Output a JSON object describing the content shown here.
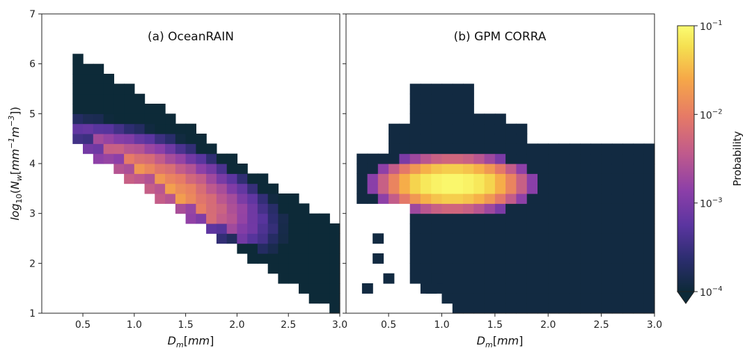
{
  "chart_data": [
    {
      "type": "heatmap",
      "title": "(a) OceanRAIN",
      "xlabel": "D_m[mm]",
      "ylabel": "log10(N_w[mm^-1 m^-3])",
      "xlim": [
        0.1,
        3.0
      ],
      "ylim": [
        1,
        7
      ],
      "xticks": [
        "0.5",
        "1.0",
        "1.5",
        "2.0",
        "2.5",
        "3.0"
      ],
      "yticks": [
        "1",
        "2",
        "3",
        "4",
        "5",
        "6",
        "7"
      ],
      "color_scale": "log",
      "distribution": {
        "center_dm": 0.95,
        "center_log10nw": 3.5,
        "peak_probability": 0.02,
        "covers_dm": [
          0.4,
          3.0
        ],
        "covers_log10nw": [
          1.0,
          6.2
        ]
      }
    },
    {
      "type": "heatmap",
      "title": "(b) GPM CORRA",
      "xlabel": "D_m[mm]",
      "xlim": [
        0.1,
        3.0
      ],
      "ylim": [
        1,
        7
      ],
      "xticks": [
        "0.5",
        "1.0",
        "1.5",
        "2.0",
        "2.5",
        "3.0"
      ],
      "color_scale": "log",
      "distribution": {
        "center_dm": 1.05,
        "center_log10nw": 3.7,
        "peak_probability": 0.1,
        "covers_dm": [
          0.3,
          3.0
        ],
        "covers_log10nw": [
          1.0,
          5.6
        ]
      }
    }
  ],
  "colorbar": {
    "label": "Probability",
    "scale": "log",
    "range": [
      0.0001,
      0.1
    ],
    "ticks": [
      {
        "base": "10",
        "exp": "−1",
        "value": 0.1
      },
      {
        "base": "10",
        "exp": "−2",
        "value": 0.01
      },
      {
        "base": "10",
        "exp": "−3",
        "value": 0.001
      },
      {
        "base": "10",
        "exp": "−4",
        "value": 0.0001
      }
    ],
    "extend": "min",
    "colormap": [
      "#0d2a38",
      "#2b2d6e",
      "#5b35a0",
      "#8c3fa8",
      "#c05a8c",
      "#e67a66",
      "#f6a848",
      "#f5df50",
      "#fbfc72"
    ]
  }
}
